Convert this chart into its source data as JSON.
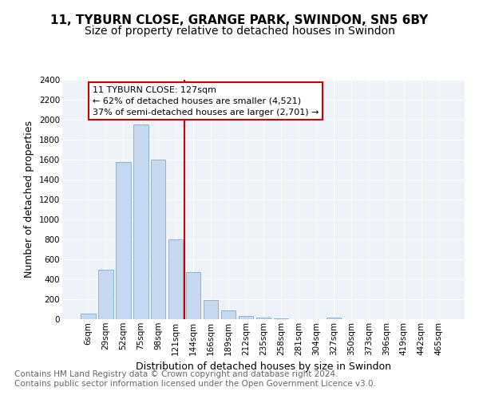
{
  "title1": "11, TYBURN CLOSE, GRANGE PARK, SWINDON, SN5 6BY",
  "title2": "Size of property relative to detached houses in Swindon",
  "xlabel": "Distribution of detached houses by size in Swindon",
  "ylabel": "Number of detached properties",
  "categories": [
    "6sqm",
    "29sqm",
    "52sqm",
    "75sqm",
    "98sqm",
    "121sqm",
    "144sqm",
    "166sqm",
    "189sqm",
    "212sqm",
    "235sqm",
    "258sqm",
    "281sqm",
    "304sqm",
    "327sqm",
    "350sqm",
    "373sqm",
    "396sqm",
    "419sqm",
    "442sqm",
    "465sqm"
  ],
  "values": [
    55,
    500,
    1580,
    1950,
    1600,
    800,
    475,
    190,
    90,
    30,
    15,
    5,
    2,
    1,
    20,
    1,
    0,
    0,
    0,
    0,
    0
  ],
  "bar_color": "#c5d8f0",
  "bar_edge_color": "#7aafd4",
  "vline_x": 5.5,
  "vline_color": "#cc0000",
  "annotation_text": "11 TYBURN CLOSE: 127sqm\n← 62% of detached houses are smaller (4,521)\n37% of semi-detached houses are larger (2,701) →",
  "annotation_box_facecolor": "#ffffff",
  "annotation_box_edgecolor": "#cc0000",
  "ylim": [
    0,
    2400
  ],
  "yticks": [
    0,
    200,
    400,
    600,
    800,
    1000,
    1200,
    1400,
    1600,
    1800,
    2000,
    2200,
    2400
  ],
  "footnote1": "Contains HM Land Registry data © Crown copyright and database right 2024.",
  "footnote2": "Contains public sector information licensed under the Open Government Licence v3.0.",
  "plot_bg_color": "#eef3fa",
  "fig_bg_color": "#ffffff",
  "title_fontsize": 11,
  "subtitle_fontsize": 10,
  "axis_label_fontsize": 9,
  "tick_fontsize": 7.5,
  "footnote_fontsize": 7.5,
  "annot_fontsize": 8
}
